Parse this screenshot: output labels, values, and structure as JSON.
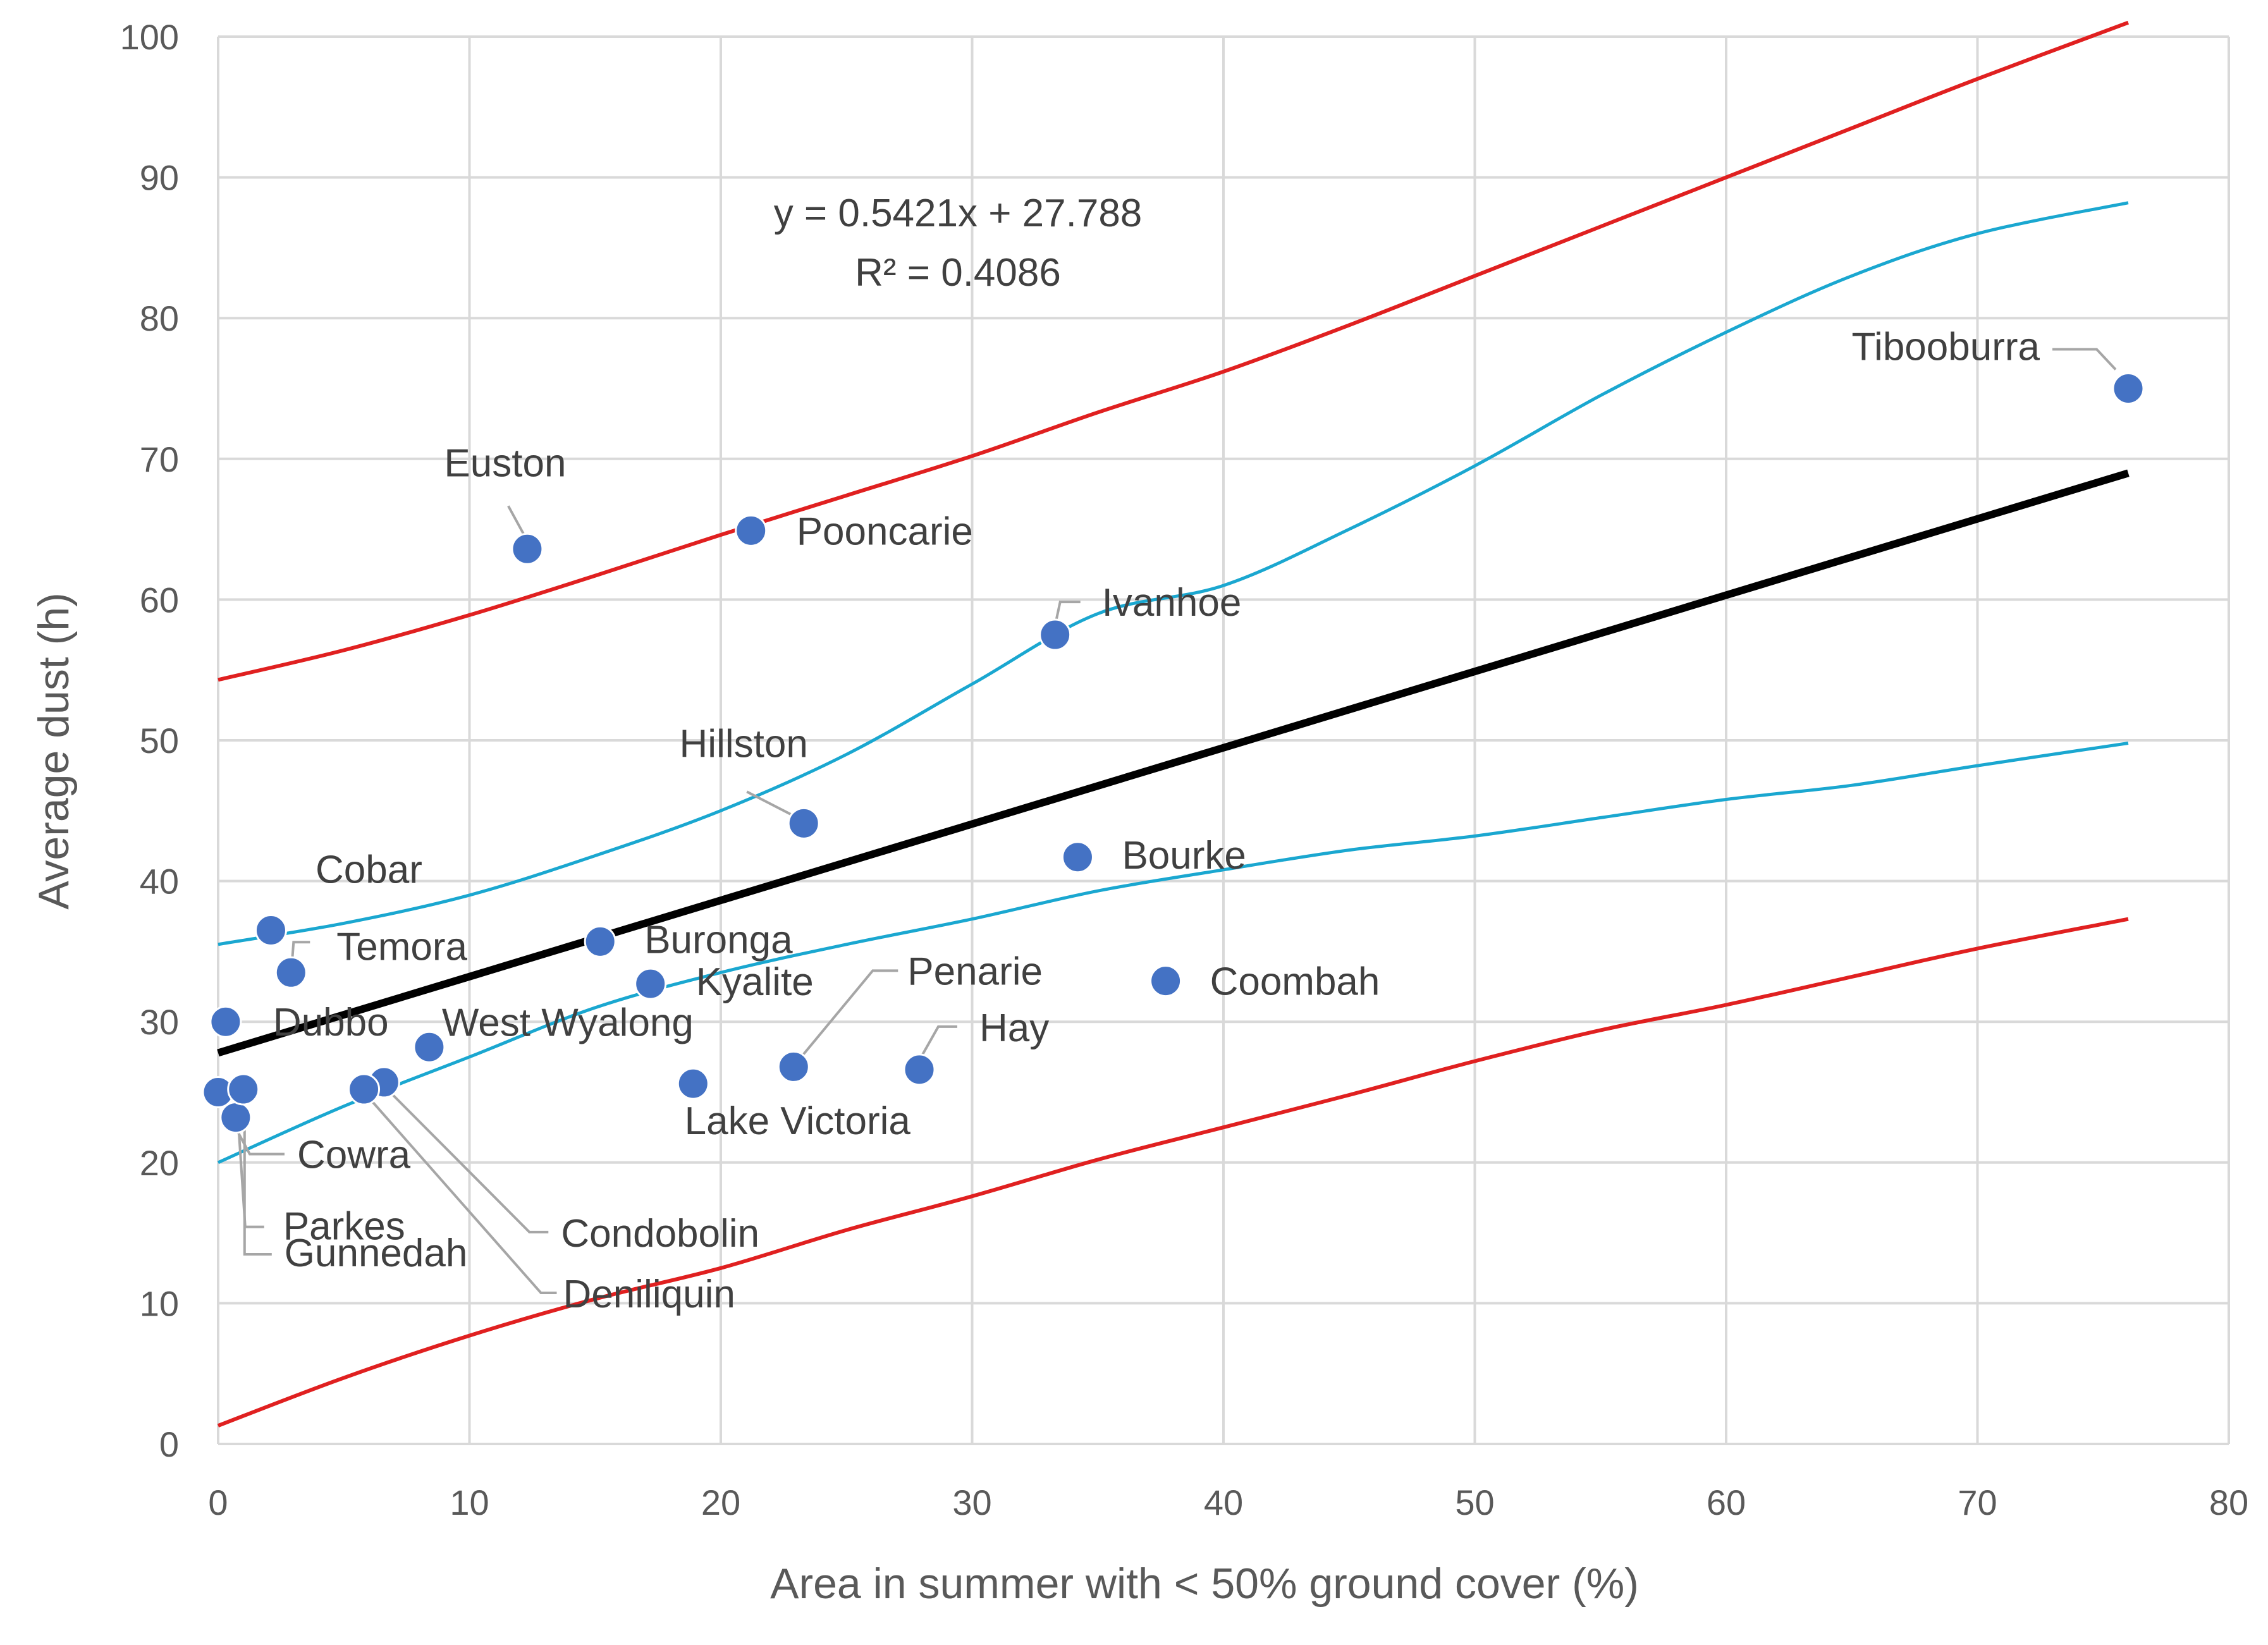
{
  "chart_data": {
    "type": "scatter",
    "xlabel": "Area in summer with < 50% ground cover (%)",
    "ylabel": "Average dust (h)",
    "xlim": [
      0,
      80
    ],
    "ylim": [
      0,
      100
    ],
    "x_ticks": [
      0,
      10,
      20,
      30,
      40,
      50,
      60,
      70,
      80
    ],
    "y_ticks": [
      0,
      10,
      20,
      30,
      40,
      50,
      60,
      70,
      80,
      90,
      100
    ],
    "grid": true,
    "trendline": {
      "slope": 0.5421,
      "intercept": 27.788,
      "x_range": [
        0,
        76
      ],
      "equation_text": "y = 0.5421x + 27.788",
      "r2_text": "R² = 0.4086",
      "color": "#000000"
    },
    "confidence_band": {
      "name": "confidence interval",
      "color": "#1aa7d0",
      "upper": {
        "x": [
          0,
          5,
          10,
          15,
          20,
          25,
          30,
          35,
          40,
          45,
          50,
          55,
          60,
          65,
          70,
          76
        ],
        "y": [
          35.5,
          37.0,
          39.0,
          41.8,
          45.0,
          49.0,
          54.0,
          59.0,
          61.0,
          65.0,
          69.5,
          74.5,
          79.0,
          83.0,
          86.0,
          88.2
        ]
      },
      "lower": {
        "x": [
          0,
          5,
          10,
          15,
          20,
          25,
          30,
          35,
          40,
          45,
          50,
          55,
          60,
          65,
          70,
          76
        ],
        "y": [
          20.0,
          24.0,
          27.5,
          31.0,
          33.5,
          35.5,
          37.3,
          39.3,
          40.8,
          42.2,
          43.2,
          44.5,
          45.8,
          46.8,
          48.2,
          49.8
        ]
      }
    },
    "prediction_band": {
      "name": "prediction interval",
      "color": "#e02020",
      "upper": {
        "x": [
          0,
          5,
          10,
          15,
          20,
          25,
          30,
          35,
          40,
          45,
          50,
          55,
          60,
          65,
          70,
          76
        ],
        "y": [
          54.3,
          56.4,
          58.9,
          61.7,
          64.6,
          67.4,
          70.2,
          73.3,
          76.2,
          79.5,
          83.0,
          86.5,
          90.0,
          93.5,
          97.0,
          101.0
        ]
      },
      "lower": {
        "x": [
          0,
          5,
          10,
          15,
          20,
          25,
          30,
          35,
          40,
          45,
          50,
          55,
          60,
          65,
          70,
          76
        ],
        "y": [
          1.3,
          4.7,
          7.7,
          10.3,
          12.5,
          15.2,
          17.6,
          20.2,
          22.5,
          24.8,
          27.2,
          29.4,
          31.2,
          33.2,
          35.2,
          37.3
        ]
      }
    },
    "points": [
      {
        "name": "Tibooburra",
        "x": 76.0,
        "y": 75.0
      },
      {
        "name": "Euston",
        "x": 12.3,
        "y": 63.6
      },
      {
        "name": "Pooncarie",
        "x": 21.2,
        "y": 64.9
      },
      {
        "name": "Ivanhoe",
        "x": 33.3,
        "y": 57.5
      },
      {
        "name": "Hillston",
        "x": 23.3,
        "y": 44.1
      },
      {
        "name": "Bourke",
        "x": 34.2,
        "y": 41.7
      },
      {
        "name": "Cobar",
        "x": 2.1,
        "y": 36.5
      },
      {
        "name": "Temora",
        "x": 2.9,
        "y": 33.5
      },
      {
        "name": "Buronga",
        "x": 15.2,
        "y": 35.7
      },
      {
        "name": "Kyalite",
        "x": 17.2,
        "y": 32.7
      },
      {
        "name": "Penarie",
        "x": 22.9,
        "y": 26.8
      },
      {
        "name": "Coombah",
        "x": 37.7,
        "y": 32.9
      },
      {
        "name": "Dubbo",
        "x": 0.3,
        "y": 30.0
      },
      {
        "name": "West Wyalong",
        "x": 8.4,
        "y": 28.2
      },
      {
        "name": "Hay",
        "x": 27.9,
        "y": 26.6
      },
      {
        "name": "Lake Victoria",
        "x": 18.9,
        "y": 25.6
      },
      {
        "name": "Cowra",
        "x": 0.0,
        "y": 25.0
      },
      {
        "name": "Parkes",
        "x": 0.7,
        "y": 23.2
      },
      {
        "name": "Gunnedah",
        "x": 1.0,
        "y": 25.2
      },
      {
        "name": "Condobolin",
        "x": 6.6,
        "y": 25.7
      },
      {
        "name": "Deniliquin",
        "x": 5.8,
        "y": 25.2
      }
    ],
    "point_color": "#4472c4"
  }
}
